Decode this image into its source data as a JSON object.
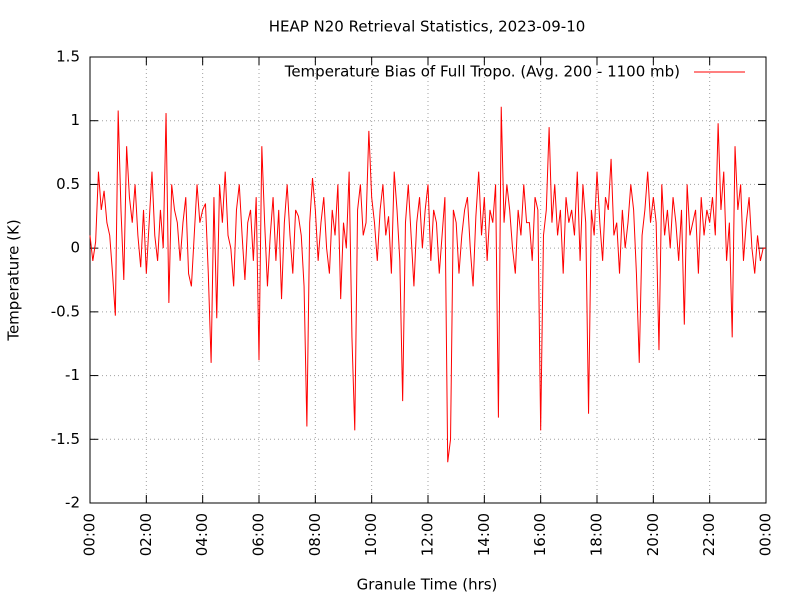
{
  "chart_data": {
    "type": "line",
    "title": "HEAP N20 Retrieval Statistics, 2023-09-10",
    "x_label": "Granule Time (hrs)",
    "y_label": "Temperature (K)",
    "x": [
      0,
      0.1,
      0.2,
      0.3,
      0.4,
      0.5,
      0.6,
      0.7,
      0.8,
      0.9,
      1,
      1.1,
      1.2,
      1.3,
      1.4,
      1.5,
      1.6,
      1.7,
      1.8,
      1.9,
      2,
      2.1,
      2.2,
      2.3,
      2.4,
      2.5,
      2.6,
      2.7,
      2.8,
      2.9,
      3,
      3.1,
      3.2,
      3.3,
      3.4,
      3.5,
      3.6,
      3.7,
      3.8,
      3.9,
      4,
      4.1,
      4.2,
      4.3,
      4.4,
      4.5,
      4.6,
      4.7,
      4.8,
      4.9,
      5,
      5.1,
      5.2,
      5.3,
      5.4,
      5.5,
      5.6,
      5.7,
      5.8,
      5.9,
      6,
      6.1,
      6.2,
      6.3,
      6.4,
      6.5,
      6.6,
      6.7,
      6.8,
      6.9,
      7,
      7.1,
      7.2,
      7.3,
      7.4,
      7.5,
      7.6,
      7.7,
      7.8,
      7.9,
      8,
      8.1,
      8.2,
      8.3,
      8.4,
      8.5,
      8.6,
      8.7,
      8.8,
      8.9,
      9,
      9.1,
      9.2,
      9.3,
      9.4,
      9.5,
      9.6,
      9.7,
      9.8,
      9.9,
      10,
      10.1,
      10.2,
      10.3,
      10.4,
      10.5,
      10.6,
      10.7,
      10.8,
      10.9,
      11,
      11.1,
      11.2,
      11.3,
      11.4,
      11.5,
      11.6,
      11.7,
      11.8,
      11.9,
      12,
      12.1,
      12.2,
      12.3,
      12.4,
      12.5,
      12.6,
      12.7,
      12.8,
      12.9,
      13,
      13.1,
      13.2,
      13.3,
      13.4,
      13.5,
      13.6,
      13.7,
      13.8,
      13.9,
      14,
      14.1,
      14.2,
      14.3,
      14.4,
      14.5,
      14.6,
      14.7,
      14.8,
      14.9,
      15,
      15.1,
      15.2,
      15.3,
      15.4,
      15.5,
      15.6,
      15.7,
      15.8,
      15.9,
      16,
      16.1,
      16.2,
      16.3,
      16.4,
      16.5,
      16.6,
      16.7,
      16.8,
      16.9,
      17,
      17.1,
      17.2,
      17.3,
      17.4,
      17.5,
      17.6,
      17.7,
      17.8,
      17.9,
      18,
      18.1,
      18.2,
      18.3,
      18.4,
      18.5,
      18.6,
      18.7,
      18.8,
      18.9,
      19,
      19.1,
      19.2,
      19.3,
      19.4,
      19.5,
      19.6,
      19.7,
      19.8,
      19.9,
      20,
      20.1,
      20.2,
      20.3,
      20.4,
      20.5,
      20.6,
      20.7,
      20.8,
      20.9,
      21,
      21.1,
      21.2,
      21.3,
      21.4,
      21.5,
      21.6,
      21.7,
      21.8,
      21.9,
      22,
      22.1,
      22.2,
      22.3,
      22.4,
      22.5,
      22.6,
      22.7,
      22.8,
      22.9,
      23,
      23.1,
      23.2,
      23.3,
      23.4,
      23.5,
      23.6,
      23.7,
      23.8,
      23.9,
      24
    ],
    "series": [
      {
        "name": "Temperature Bias of Full Tropo. (Avg. 200 - 1100 mb)",
        "color": "#ff0000",
        "values": [
          0.1,
          -0.1,
          0.05,
          0.6,
          0.3,
          0.45,
          0.2,
          0.1,
          -0.2,
          -0.53,
          1.08,
          0.3,
          -0.25,
          0.8,
          0.4,
          0.2,
          0.5,
          0.1,
          -0.15,
          0.3,
          -0.2,
          0.2,
          0.6,
          0.1,
          -0.1,
          0.3,
          0.0,
          1.06,
          -0.43,
          0.5,
          0.3,
          0.2,
          -0.1,
          0.2,
          0.4,
          -0.2,
          -0.3,
          0.1,
          0.5,
          0.2,
          0.3,
          0.35,
          -0.2,
          -0.9,
          0.4,
          -0.55,
          0.5,
          0.2,
          0.6,
          0.1,
          0.0,
          -0.3,
          0.3,
          0.5,
          0.1,
          -0.25,
          0.2,
          0.3,
          -0.1,
          0.4,
          -0.88,
          0.8,
          0.2,
          -0.3,
          0.1,
          0.4,
          -0.1,
          0.3,
          -0.4,
          0.2,
          0.5,
          0.1,
          -0.2,
          0.3,
          0.25,
          0.1,
          -0.3,
          -1.4,
          0.2,
          0.55,
          0.3,
          -0.1,
          0.2,
          0.4,
          0.0,
          -0.2,
          0.3,
          0.1,
          0.5,
          -0.4,
          0.2,
          0.0,
          0.6,
          -0.7,
          -1.43,
          0.3,
          0.5,
          0.1,
          0.2,
          0.92,
          0.4,
          0.2,
          -0.1,
          0.3,
          0.5,
          0.1,
          0.25,
          -0.2,
          0.6,
          0.3,
          -0.1,
          -1.2,
          0.2,
          0.5,
          0.1,
          -0.3,
          0.2,
          0.4,
          0.0,
          0.3,
          0.5,
          -0.1,
          0.3,
          0.2,
          -0.2,
          0.1,
          0.4,
          -1.68,
          -1.5,
          0.3,
          0.2,
          -0.2,
          0.1,
          0.3,
          0.4,
          0.0,
          -0.3,
          0.25,
          0.6,
          0.1,
          0.4,
          -0.1,
          0.3,
          0.2,
          0.5,
          -1.33,
          1.11,
          0.2,
          0.5,
          0.3,
          0.0,
          -0.2,
          0.3,
          0.1,
          0.5,
          0.2,
          0.2,
          -0.1,
          0.4,
          0.3,
          -1.43,
          0.1,
          0.3,
          0.95,
          0.2,
          0.5,
          0.1,
          0.3,
          -0.2,
          0.4,
          0.2,
          0.3,
          0.1,
          0.6,
          -0.1,
          0.5,
          0.2,
          -1.3,
          0.3,
          0.1,
          0.6,
          0.2,
          -0.1,
          0.4,
          0.3,
          0.7,
          0.1,
          0.2,
          -0.2,
          0.3,
          0.0,
          0.2,
          0.5,
          0.3,
          -0.2,
          -0.9,
          0.1,
          0.3,
          0.6,
          0.2,
          0.4,
          0.2,
          -0.8,
          0.5,
          0.1,
          0.3,
          0.0,
          0.4,
          0.2,
          -0.1,
          0.3,
          -0.6,
          0.5,
          0.1,
          0.2,
          0.3,
          -0.2,
          0.4,
          0.1,
          0.3,
          0.2,
          0.4,
          0.1,
          0.98,
          0.3,
          0.6,
          -0.1,
          0.2,
          -0.7,
          0.8,
          0.3,
          0.5,
          -0.1,
          0.2,
          0.4,
          0.0,
          -0.2,
          0.1,
          -0.1,
          0.0,
          0.0
        ]
      }
    ],
    "xlim": [
      0,
      24
    ],
    "xticks": [
      {
        "value": 0,
        "label": "00:00"
      },
      {
        "value": 2,
        "label": "02:00"
      },
      {
        "value": 4,
        "label": "04:00"
      },
      {
        "value": 6,
        "label": "06:00"
      },
      {
        "value": 8,
        "label": "08:00"
      },
      {
        "value": 10,
        "label": "10:00"
      },
      {
        "value": 12,
        "label": "12:00"
      },
      {
        "value": 14,
        "label": "14:00"
      },
      {
        "value": 16,
        "label": "16:00"
      },
      {
        "value": 18,
        "label": "18:00"
      },
      {
        "value": 20,
        "label": "20:00"
      },
      {
        "value": 22,
        "label": "22:00"
      },
      {
        "value": 24,
        "label": "00:00"
      }
    ],
    "ylim": [
      -2,
      1.5
    ],
    "yticks": [
      1.5,
      1,
      0.5,
      0,
      -0.5,
      -1,
      -1.5,
      -2
    ],
    "grid": true,
    "legend": "top-right"
  }
}
